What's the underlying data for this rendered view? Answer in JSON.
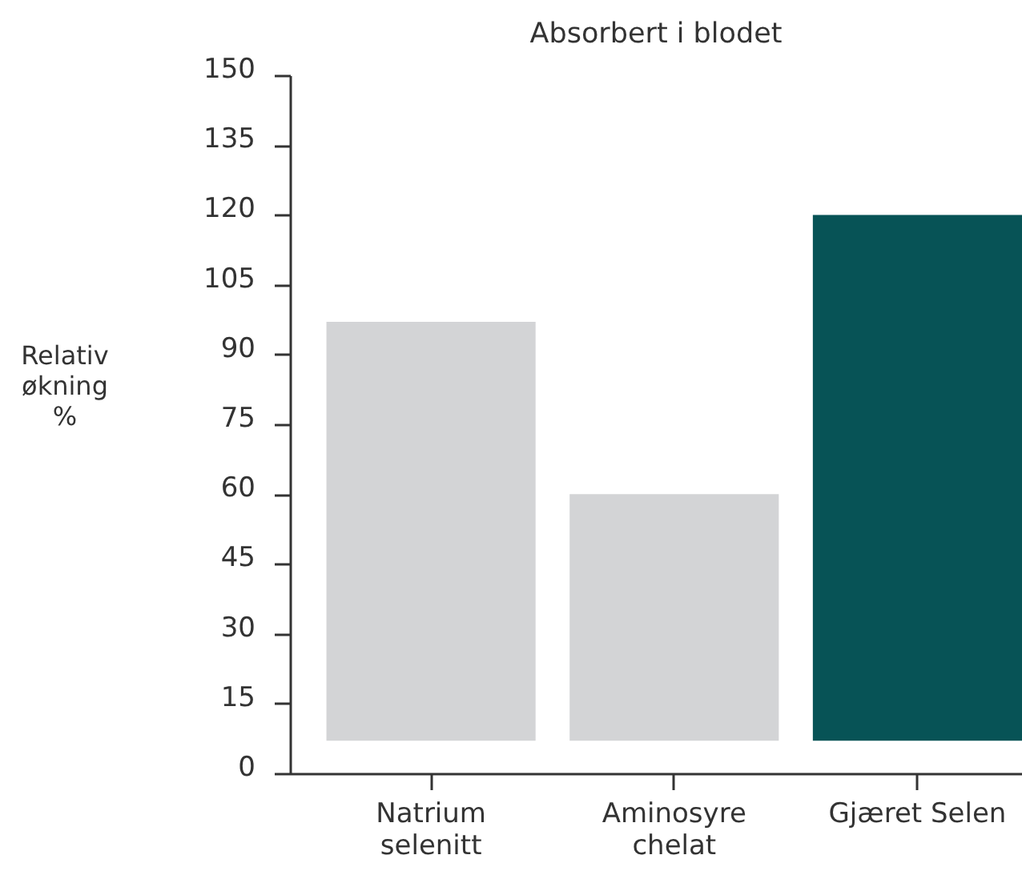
{
  "chart_data": {
    "type": "bar",
    "title": "Absorbert i blodet",
    "ylabel": "Relativ økning %",
    "categories": [
      "Natrium selenitt",
      "Aminosyre chelat",
      "Gjæret Selen"
    ],
    "values": [
      90,
      53,
      113
    ],
    "base": [
      7,
      7,
      7
    ],
    "colors": [
      "#d3d4d6",
      "#d3d4d6",
      "#075356"
    ],
    "ylim": [
      0,
      150
    ],
    "yticks": [
      0,
      15,
      30,
      45,
      60,
      75,
      90,
      105,
      120,
      135,
      150
    ],
    "grid": false
  }
}
